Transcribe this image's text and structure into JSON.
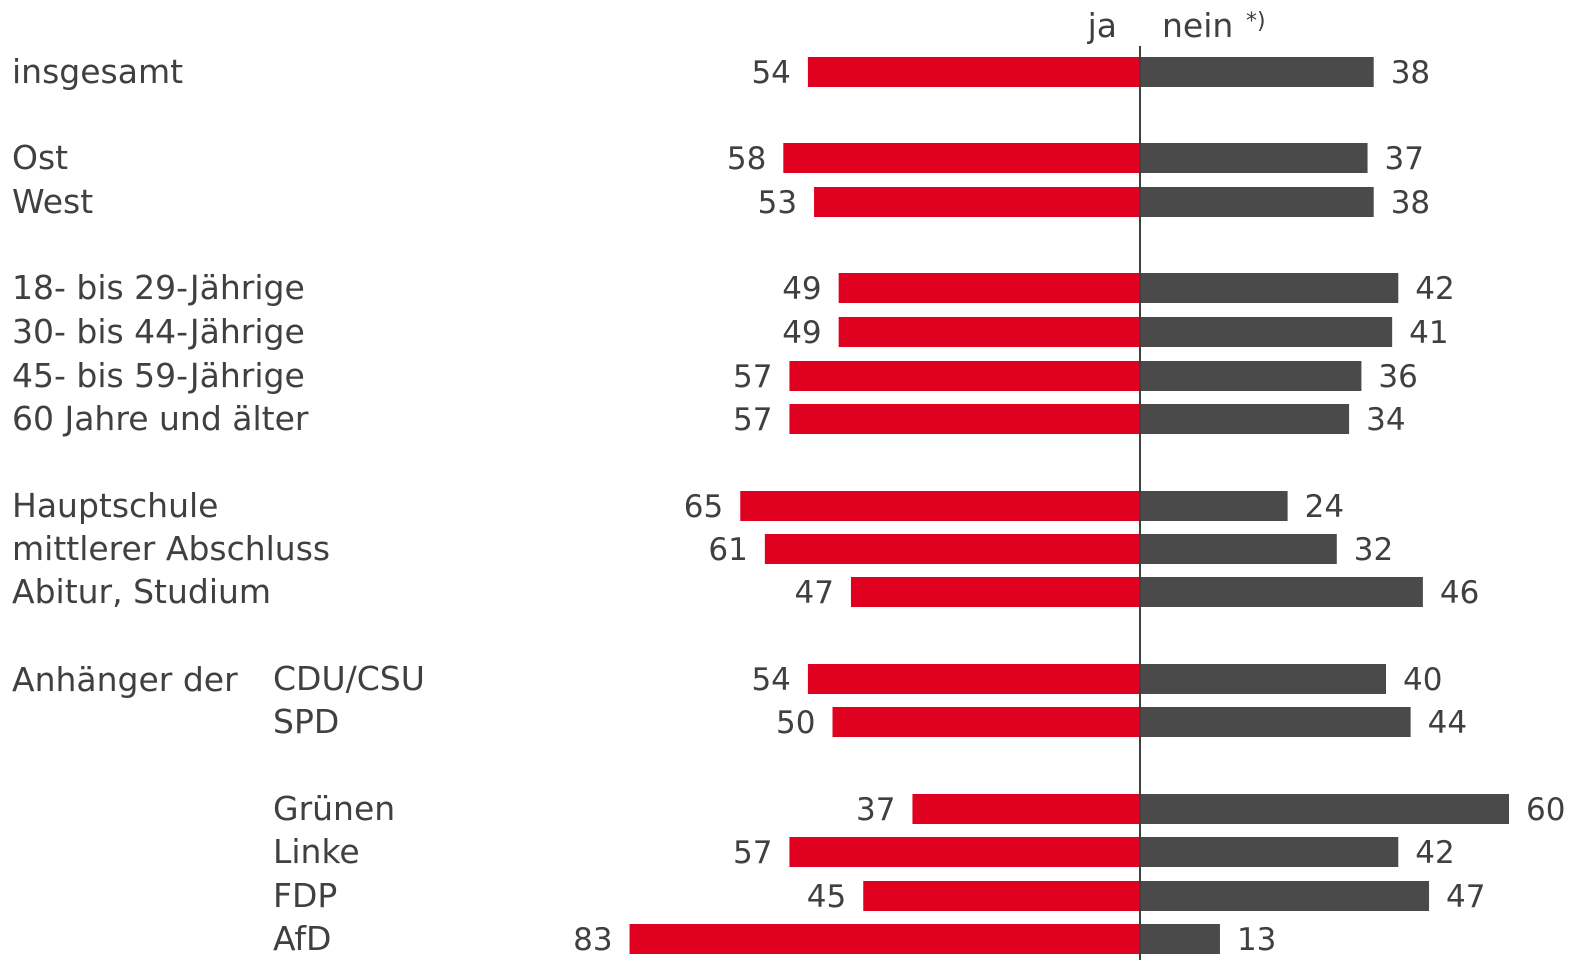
{
  "chart_data": {
    "type": "bar",
    "orientation": "horizontal-diverging",
    "headers": {
      "ja": "ja",
      "nein": "nein",
      "footnote_mark": "*)"
    },
    "group_prefix": "Anhänger der",
    "categories": [
      "insgesamt",
      "Ost",
      "West",
      "18- bis 29-Jährige",
      "30- bis 44-Jährige",
      "45- bis 59-Jährige",
      "60 Jahre und älter",
      "Hauptschule",
      "mittlerer Abschluss",
      "Abitur, Studium",
      "CDU/CSU",
      "SPD",
      "Grünen",
      "Linke",
      "FDP",
      "AfD"
    ],
    "series": [
      {
        "name": "ja",
        "values": [
          54,
          58,
          53,
          49,
          49,
          57,
          57,
          65,
          61,
          47,
          54,
          50,
          37,
          57,
          45,
          83
        ]
      },
      {
        "name": "nein",
        "values": [
          38,
          37,
          38,
          42,
          41,
          36,
          34,
          24,
          32,
          46,
          40,
          44,
          60,
          42,
          47,
          13
        ]
      }
    ],
    "grid": false,
    "legend": "top-center",
    "colors": {
      "ja": "#e00020",
      "nein": "#4a4a4a",
      "text": "#404040",
      "axis": "#404040"
    }
  }
}
